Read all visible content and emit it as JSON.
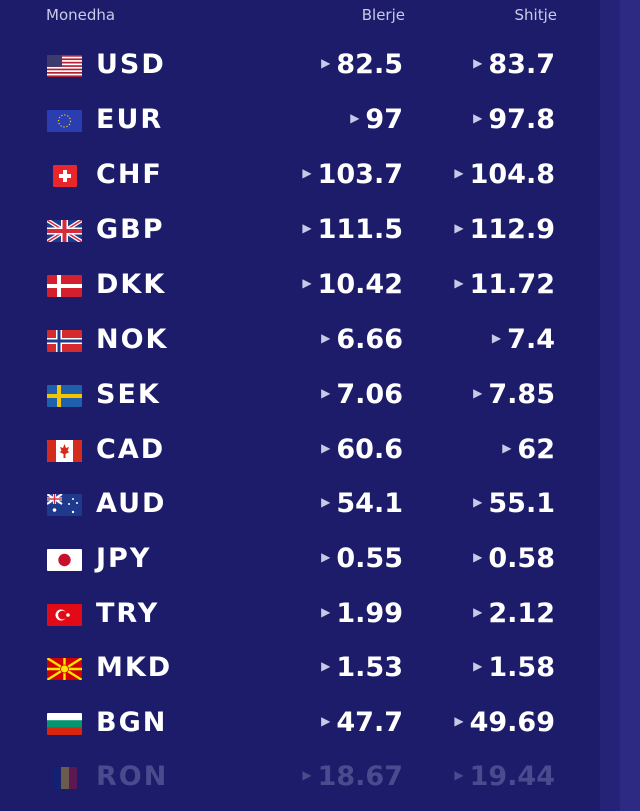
{
  "header": {
    "currency": "Monedha",
    "buy": "Blerje",
    "sell": "Shitje"
  },
  "rates": [
    {
      "code": "USD",
      "flag": "us-flag-icon",
      "buy": "82.5",
      "sell": "83.7"
    },
    {
      "code": "EUR",
      "flag": "eu-flag-icon",
      "buy": "97",
      "sell": "97.8"
    },
    {
      "code": "CHF",
      "flag": "ch-flag-icon",
      "buy": "103.7",
      "sell": "104.8"
    },
    {
      "code": "GBP",
      "flag": "gb-flag-icon",
      "buy": "111.5",
      "sell": "112.9"
    },
    {
      "code": "DKK",
      "flag": "dk-flag-icon",
      "buy": "10.42",
      "sell": "11.72"
    },
    {
      "code": "NOK",
      "flag": "no-flag-icon",
      "buy": "6.66",
      "sell": "7.4"
    },
    {
      "code": "SEK",
      "flag": "se-flag-icon",
      "buy": "7.06",
      "sell": "7.85"
    },
    {
      "code": "CAD",
      "flag": "ca-flag-icon",
      "buy": "60.6",
      "sell": "62"
    },
    {
      "code": "AUD",
      "flag": "au-flag-icon",
      "buy": "54.1",
      "sell": "55.1"
    },
    {
      "code": "JPY",
      "flag": "jp-flag-icon",
      "buy": "0.55",
      "sell": "0.58"
    },
    {
      "code": "TRY",
      "flag": "tr-flag-icon",
      "buy": "1.99",
      "sell": "2.12"
    },
    {
      "code": "MKD",
      "flag": "mk-flag-icon",
      "buy": "1.53",
      "sell": "1.58"
    },
    {
      "code": "BGN",
      "flag": "bg-flag-icon",
      "buy": "47.7",
      "sell": "49.69"
    },
    {
      "code": "RON",
      "flag": "ro-flag-icon",
      "buy": "18.67",
      "sell": "19.44"
    }
  ],
  "icons": {
    "arrow": "triangle-right-icon"
  },
  "colors": {
    "panel": "#1d1c6b",
    "text": "#ffffff",
    "header_text": "#c9cbe8",
    "side": "#2c2a82"
  }
}
